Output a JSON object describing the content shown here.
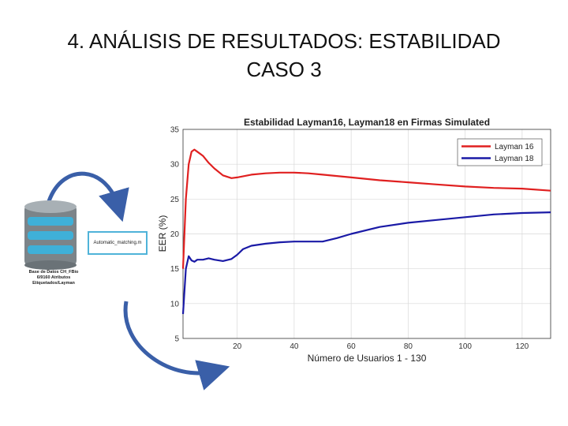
{
  "slide": {
    "title_line1": "4. ANÁLISIS DE RESULTADOS: ESTABILIDAD",
    "title_line2": "CASO 3"
  },
  "diagram": {
    "db_label_line1": "Base de Datos CH_FBio",
    "db_label_line2": "6/9160 Atributos",
    "db_label_line3": "Etiquetados/Layman",
    "match_label": "Automatic_matching.m",
    "colors": {
      "arrow": "#3a5fa8",
      "box_border": "#4fb3d9",
      "db_blue": "#3fb0d8",
      "db_gray": "#7c8489"
    }
  },
  "chart_data": {
    "type": "line",
    "title": "Estabilidad Layman16, Layman18 en Firmas Simulated",
    "xlabel": "Número de Usuarios 1 - 130",
    "ylabel": "EER (%)",
    "xlim": [
      1,
      130
    ],
    "ylim": [
      5,
      35
    ],
    "xticks": [
      20,
      40,
      60,
      80,
      100,
      120
    ],
    "yticks": [
      5,
      10,
      15,
      20,
      25,
      30,
      35
    ],
    "grid": true,
    "legend_position": "top-right",
    "series": [
      {
        "name": "Layman 16",
        "color": "#e02020",
        "x": [
          1,
          2,
          3,
          4,
          5,
          6,
          8,
          10,
          12,
          15,
          18,
          20,
          25,
          30,
          35,
          40,
          45,
          50,
          60,
          70,
          80,
          90,
          100,
          110,
          120,
          130
        ],
        "y": [
          15,
          25,
          30,
          31.8,
          32.1,
          31.8,
          31.2,
          30.2,
          29.4,
          28.4,
          28.0,
          28.1,
          28.5,
          28.7,
          28.8,
          28.8,
          28.7,
          28.5,
          28.1,
          27.7,
          27.4,
          27.1,
          26.8,
          26.6,
          26.5,
          26.2
        ]
      },
      {
        "name": "Layman 18",
        "color": "#1a1aa6",
        "x": [
          1,
          2,
          3,
          4,
          5,
          6,
          8,
          10,
          12,
          15,
          18,
          20,
          22,
          25,
          30,
          35,
          40,
          45,
          50,
          55,
          60,
          70,
          80,
          90,
          100,
          110,
          120,
          130
        ],
        "y": [
          8.5,
          15,
          16.8,
          16.2,
          16.0,
          16.3,
          16.3,
          16.5,
          16.3,
          16.1,
          16.4,
          17.0,
          17.8,
          18.3,
          18.6,
          18.8,
          18.9,
          18.9,
          18.9,
          19.4,
          20.0,
          21.0,
          21.6,
          22.0,
          22.4,
          22.8,
          23.0,
          23.1
        ]
      }
    ]
  }
}
